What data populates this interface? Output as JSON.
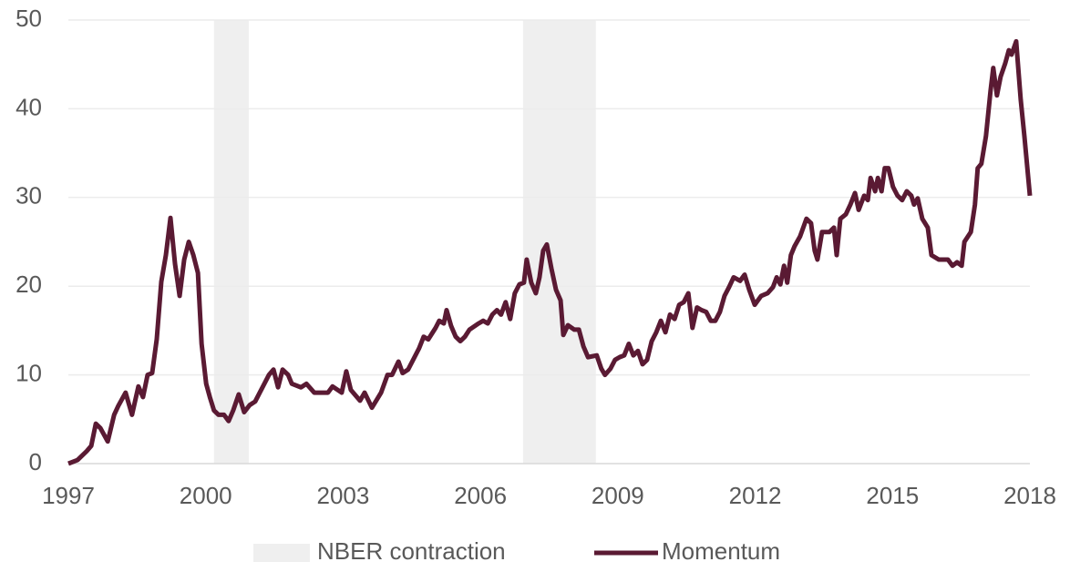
{
  "chart_data": {
    "type": "line",
    "x": [
      1997.0,
      1997.2,
      1997.4,
      1997.5,
      1997.6,
      1997.7,
      1997.86,
      1998.0,
      1998.09,
      1998.25,
      1998.39,
      1998.53,
      1998.63,
      1998.73,
      1998.83,
      1998.93,
      1999.03,
      1999.13,
      1999.23,
      1999.33,
      1999.43,
      1999.53,
      1999.63,
      1999.73,
      1999.83,
      1999.91,
      2000.01,
      2000.09,
      2000.18,
      2000.28,
      2000.4,
      2000.5,
      2000.6,
      2000.72,
      2000.84,
      2000.96,
      2001.08,
      2001.18,
      2001.28,
      2001.38,
      2001.48,
      2001.58,
      2001.68,
      2001.8,
      2001.88,
      2002.08,
      2002.2,
      2002.37,
      2002.57,
      2002.67,
      2002.77,
      2002.97,
      2003.07,
      2003.17,
      2003.37,
      2003.47,
      2003.63,
      2003.83,
      2003.97,
      2004.07,
      2004.21,
      2004.3,
      2004.42,
      2004.56,
      2004.66,
      2004.76,
      2004.86,
      2005.02,
      2005.1,
      2005.2,
      2005.26,
      2005.36,
      2005.46,
      2005.56,
      2005.66,
      2005.76,
      2005.96,
      2006.06,
      2006.16,
      2006.26,
      2006.36,
      2006.45,
      2006.55,
      2006.65,
      2006.75,
      2006.85,
      2006.95,
      2007.01,
      2007.11,
      2007.21,
      2007.29,
      2007.37,
      2007.45,
      2007.55,
      2007.65,
      2007.75,
      2007.81,
      2007.91,
      2008.05,
      2008.15,
      2008.25,
      2008.35,
      2008.54,
      2008.64,
      2008.72,
      2008.84,
      2008.94,
      2009.04,
      2009.14,
      2009.24,
      2009.34,
      2009.44,
      2009.54,
      2009.64,
      2009.74,
      2009.84,
      2009.94,
      2010.04,
      2010.14,
      2010.24,
      2010.34,
      2010.44,
      2010.54,
      2010.63,
      2010.73,
      2010.83,
      2010.93,
      2011.03,
      2011.13,
      2011.23,
      2011.33,
      2011.43,
      2011.53,
      2011.67,
      2011.77,
      2011.87,
      2011.99,
      2012.13,
      2012.27,
      2012.39,
      2012.47,
      2012.55,
      2012.63,
      2012.7,
      2012.78,
      2012.86,
      2012.98,
      2013.12,
      2013.22,
      2013.3,
      2013.36,
      2013.46,
      2013.62,
      2013.72,
      2013.78,
      2013.86,
      2013.98,
      2014.08,
      2014.18,
      2014.26,
      2014.38,
      2014.46,
      2014.52,
      2014.62,
      2014.68,
      2014.76,
      2014.83,
      2014.91,
      2015.01,
      2015.11,
      2015.21,
      2015.31,
      2015.41,
      2015.47,
      2015.55,
      2015.65,
      2015.77,
      2015.85,
      2016.01,
      2016.21,
      2016.31,
      2016.41,
      2016.51,
      2016.57,
      2016.71,
      2016.8,
      2016.86,
      2016.94,
      2017.04,
      2017.14,
      2017.2,
      2017.28,
      2017.36,
      2017.46,
      2017.54,
      2017.6,
      2017.7,
      2017.8,
      2017.88,
      2018.0
    ],
    "series": [
      {
        "name": "Momentum",
        "color": "#5a1a33",
        "values": [
          0,
          0.4,
          1.4,
          2,
          4.5,
          4,
          2.5,
          5.5,
          6.5,
          8,
          5.5,
          8.7,
          7.5,
          10,
          10.2,
          14,
          20.5,
          23.5,
          27.7,
          22.5,
          18.9,
          23,
          25,
          23.5,
          21.5,
          13.5,
          9,
          7.5,
          6,
          5.5,
          5.5,
          4.8,
          6,
          7.8,
          5.8,
          6.6,
          7,
          8,
          9,
          10,
          10.6,
          8.6,
          10.6,
          10,
          9,
          8.6,
          9,
          8,
          8,
          8,
          8.7,
          8,
          10.4,
          8.3,
          7.1,
          8,
          6.3,
          8,
          10,
          10,
          11.5,
          10.2,
          10.6,
          12,
          13,
          14.3,
          14,
          15.3,
          16.1,
          15.8,
          17.3,
          15.5,
          14.3,
          13.8,
          14.3,
          15.1,
          15.8,
          16.1,
          15.8,
          16.8,
          17.3,
          16.8,
          18.2,
          16.3,
          19.2,
          20.2,
          20.4,
          23,
          20.4,
          19.2,
          21,
          24,
          24.7,
          22,
          19.6,
          18.4,
          14.5,
          15.6,
          15.1,
          15.1,
          13.2,
          12,
          12.2,
          10.7,
          10,
          10.7,
          11.7,
          12,
          12.2,
          13.5,
          12.2,
          12.7,
          11.2,
          11.7,
          13.8,
          14.8,
          16.1,
          14.8,
          16.8,
          16.3,
          17.9,
          18.2,
          19.2,
          15.3,
          17.6,
          17.3,
          17.1,
          16.1,
          16.1,
          17.1,
          18.9,
          19.9,
          21,
          20.6,
          21.3,
          19.6,
          17.9,
          18.9,
          19.2,
          19.9,
          21,
          20.2,
          22.3,
          20.4,
          23.5,
          24.5,
          25.6,
          27.6,
          27.1,
          24,
          23,
          26.1,
          26.1,
          26.6,
          23.5,
          27.6,
          28.1,
          29.2,
          30.5,
          28.6,
          30.2,
          29.7,
          32.2,
          30.7,
          32.2,
          30.7,
          33.3,
          33.3,
          31.2,
          30.2,
          29.7,
          30.7,
          30.2,
          29.2,
          29.9,
          27.6,
          26.6,
          23.5,
          23,
          23,
          22.3,
          22.7,
          22.3,
          25,
          26.1,
          29.2,
          33.3,
          33.8,
          36.9,
          42,
          44.6,
          41.5,
          43.6,
          45.1,
          46.6,
          46.1,
          47.6,
          41,
          36.9,
          30.2
        ]
      }
    ],
    "regions": {
      "name": "NBER contraction",
      "color": "#efefef",
      "spans": [
        [
          2000.18,
          2000.94
        ],
        [
          2006.93,
          2008.52
        ]
      ]
    },
    "xlim": [
      1997,
      2018
    ],
    "xticks": [
      1997,
      2000,
      2003,
      2006,
      2009,
      2012,
      2015,
      2018
    ],
    "ylim": [
      0,
      50
    ],
    "yticks": [
      0,
      10,
      20,
      30,
      40,
      50
    ],
    "grid": true
  }
}
